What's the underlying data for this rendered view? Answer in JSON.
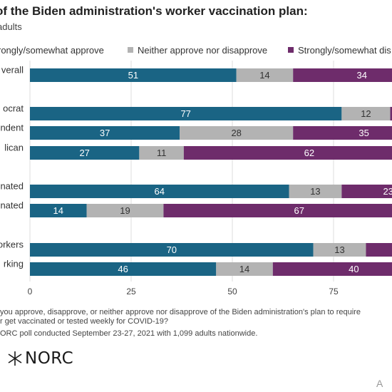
{
  "title": "of the Biden administration's worker vaccination plan:",
  "subtitle": "adults",
  "legend": [
    {
      "label": "rongly/somewhat approve",
      "color": "#1a6484"
    },
    {
      "label": "Neither approve nor disapprove",
      "color": "#b3b3b3"
    },
    {
      "label": "Strongly/somewhat dis",
      "color": "#6e2c6b"
    }
  ],
  "chart_data": {
    "type": "bar",
    "orientation": "horizontal",
    "stacked": true,
    "categories": [
      "verall",
      "ocrat",
      "ndent",
      "lican",
      "nated",
      "nated",
      "orkers",
      "rking"
    ],
    "series": [
      {
        "name": "rongly/somewhat approve",
        "color": "#1a6484",
        "values": [
          51,
          77,
          37,
          27,
          64,
          14,
          70,
          46
        ]
      },
      {
        "name": "Neither approve nor disapprove",
        "color": "#b3b3b3",
        "values": [
          14,
          12,
          28,
          11,
          13,
          19,
          13,
          14
        ]
      },
      {
        "name": "Strongly/somewhat dis",
        "color": "#6e2c6b",
        "values": [
          34,
          11,
          35,
          62,
          23,
          67,
          17,
          40
        ]
      }
    ],
    "value_labels": [
      [
        "51",
        "14",
        "34"
      ],
      [
        "77",
        "12",
        ""
      ],
      [
        "37",
        "28",
        "35"
      ],
      [
        "27",
        "11",
        "62"
      ],
      [
        "64",
        "13",
        "23"
      ],
      [
        "14",
        "19",
        "67"
      ],
      [
        "70",
        "13",
        ""
      ],
      [
        "46",
        "14",
        "40"
      ]
    ],
    "xlim": [
      0,
      100
    ],
    "xticks": [
      "0",
      "25",
      "50",
      "75"
    ],
    "grid": true,
    "legend_position": "top"
  },
  "footer": {
    "lines": [
      "you approve, disapprove, or neither approve nor disapprove of the Biden administration's plan to require",
      "r get vaccinated or tested weekly for COVID-19?",
      "ORC poll conducted September 23-27, 2021 with 1,099 adults nationwide."
    ]
  },
  "logo_text": "NORC",
  "credit": "A"
}
